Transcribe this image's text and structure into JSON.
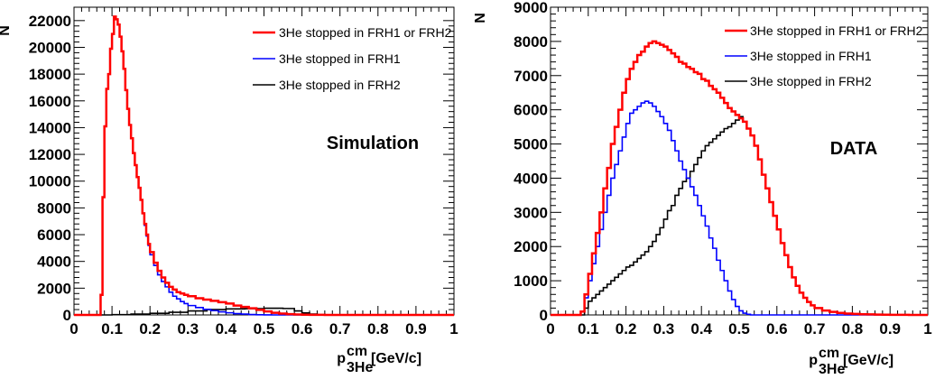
{
  "chart_data": [
    {
      "type": "line",
      "ylabel": "N",
      "xlabel_main": "p",
      "xlabel_sup": "cm",
      "xlabel_sub": "3He",
      "xlabel_unit": "[GeV/c]",
      "xlim": [
        0,
        1
      ],
      "ylim": [
        0,
        23000
      ],
      "xticks": [
        "0",
        "0.1",
        "0.2",
        "0.3",
        "0.4",
        "0.5",
        "0.6",
        "0.7",
        "0.8",
        "0.9",
        "1"
      ],
      "yticks": [
        "0",
        "2000",
        "4000",
        "6000",
        "8000",
        "10000",
        "12000",
        "14000",
        "16000",
        "18000",
        "20000",
        "22000"
      ],
      "annotation": "Simulation",
      "legend_position": "top-right",
      "grid": false,
      "series": [
        {
          "name": "3He stopped in FRH1 or FRH2",
          "color": "#ff0000",
          "x": [
            0.0,
            0.065,
            0.07,
            0.075,
            0.08,
            0.085,
            0.09,
            0.095,
            0.1,
            0.105,
            0.11,
            0.115,
            0.12,
            0.125,
            0.13,
            0.135,
            0.14,
            0.145,
            0.15,
            0.155,
            0.16,
            0.165,
            0.17,
            0.175,
            0.18,
            0.185,
            0.19,
            0.195,
            0.2,
            0.21,
            0.22,
            0.23,
            0.24,
            0.25,
            0.26,
            0.27,
            0.28,
            0.29,
            0.3,
            0.32,
            0.34,
            0.36,
            0.38,
            0.4,
            0.42,
            0.44,
            0.46,
            0.48,
            0.5,
            0.52,
            0.54,
            0.56,
            0.58,
            0.6,
            0.62,
            0.64,
            0.66,
            0.7,
            0.8,
            0.9,
            1.0
          ],
          "y": [
            0,
            0,
            1500,
            8800,
            14100,
            16900,
            18000,
            19900,
            21000,
            22300,
            22100,
            21700,
            20800,
            19700,
            18400,
            16800,
            15400,
            14200,
            13200,
            12100,
            11200,
            10300,
            9500,
            8600,
            7600,
            6800,
            6000,
            5300,
            4700,
            3900,
            3300,
            2800,
            2400,
            2100,
            1900,
            1700,
            1600,
            1500,
            1400,
            1250,
            1150,
            1050,
            950,
            850,
            700,
            600,
            500,
            380,
            260,
            160,
            100,
            60,
            30,
            20,
            10,
            5,
            0,
            0,
            0,
            0,
            0
          ]
        },
        {
          "name": "3He stopped in FRH1",
          "color": "#0000ff",
          "x": [
            0.0,
            0.065,
            0.07,
            0.075,
            0.08,
            0.085,
            0.09,
            0.095,
            0.1,
            0.105,
            0.11,
            0.115,
            0.12,
            0.125,
            0.13,
            0.135,
            0.14,
            0.145,
            0.15,
            0.155,
            0.16,
            0.165,
            0.17,
            0.175,
            0.18,
            0.185,
            0.19,
            0.195,
            0.2,
            0.21,
            0.22,
            0.23,
            0.24,
            0.25,
            0.26,
            0.27,
            0.28,
            0.29,
            0.3,
            0.32,
            0.34,
            0.36,
            0.38,
            0.4,
            0.42,
            0.44,
            0.46,
            0.48,
            0.5,
            0.52,
            0.54,
            0.56,
            0.6,
            0.7,
            0.8,
            0.9,
            1.0
          ],
          "y": [
            0,
            0,
            1500,
            8800,
            14100,
            16900,
            18000,
            19900,
            21000,
            22300,
            22100,
            21700,
            20800,
            19700,
            18400,
            16800,
            15400,
            14200,
            13200,
            12100,
            11200,
            10300,
            9500,
            8600,
            7600,
            6700,
            5900,
            5200,
            4500,
            3700,
            3000,
            2500,
            2100,
            1700,
            1400,
            1200,
            1000,
            850,
            700,
            550,
            420,
            320,
            230,
            160,
            100,
            60,
            30,
            15,
            5,
            0,
            0,
            0,
            0,
            0,
            0,
            0,
            0
          ]
        },
        {
          "name": "3He stopped in FRH2",
          "color": "#000000",
          "x": [
            0.0,
            0.06,
            0.1,
            0.15,
            0.2,
            0.25,
            0.3,
            0.35,
            0.4,
            0.45,
            0.5,
            0.55,
            0.58,
            0.6,
            0.62,
            0.64,
            0.66,
            0.7,
            0.8,
            1.0
          ],
          "y": [
            0,
            0,
            20,
            60,
            120,
            200,
            300,
            400,
            450,
            470,
            500,
            480,
            300,
            150,
            60,
            20,
            0,
            0,
            0,
            0
          ]
        }
      ]
    },
    {
      "type": "line",
      "ylabel": "N",
      "xlabel_main": "p",
      "xlabel_sup": "cm",
      "xlabel_sub": "3He",
      "xlabel_unit": "[GeV/c]",
      "xlim": [
        0,
        1
      ],
      "ylim": [
        0,
        9000
      ],
      "xticks": [
        "0",
        "0.1",
        "0.2",
        "0.3",
        "0.4",
        "0.5",
        "0.6",
        "0.7",
        "0.8",
        "0.9",
        "1"
      ],
      "yticks": [
        "0",
        "1000",
        "2000",
        "3000",
        "4000",
        "5000",
        "6000",
        "7000",
        "8000",
        "9000"
      ],
      "annotation": "DATA",
      "legend_position": "top-right",
      "grid": false,
      "series": [
        {
          "name": "3He stopped in FRH1 or FRH2",
          "color": "#ff0000",
          "x": [
            0.0,
            0.07,
            0.08,
            0.09,
            0.1,
            0.11,
            0.12,
            0.13,
            0.14,
            0.15,
            0.16,
            0.17,
            0.18,
            0.19,
            0.2,
            0.21,
            0.22,
            0.23,
            0.24,
            0.25,
            0.26,
            0.27,
            0.28,
            0.29,
            0.3,
            0.31,
            0.32,
            0.33,
            0.34,
            0.35,
            0.36,
            0.37,
            0.38,
            0.39,
            0.4,
            0.41,
            0.42,
            0.43,
            0.44,
            0.45,
            0.46,
            0.47,
            0.48,
            0.49,
            0.5,
            0.51,
            0.52,
            0.53,
            0.54,
            0.55,
            0.56,
            0.57,
            0.58,
            0.59,
            0.6,
            0.61,
            0.62,
            0.63,
            0.64,
            0.65,
            0.66,
            0.67,
            0.68,
            0.69,
            0.7,
            0.72,
            0.74,
            0.76,
            0.78,
            0.8,
            0.82,
            0.84,
            0.86,
            0.88,
            0.9,
            0.95,
            1.0
          ],
          "y": [
            0,
            0,
            100,
            600,
            1200,
            1800,
            2400,
            3000,
            3700,
            4300,
            5000,
            5500,
            6000,
            6500,
            6900,
            7200,
            7400,
            7600,
            7700,
            7850,
            7950,
            8000,
            7950,
            7900,
            7850,
            7750,
            7650,
            7550,
            7400,
            7350,
            7250,
            7200,
            7100,
            7050,
            6900,
            6850,
            6700,
            6600,
            6500,
            6350,
            6200,
            6050,
            5950,
            5850,
            5750,
            5650,
            5450,
            5250,
            4950,
            4550,
            4100,
            3700,
            3300,
            2900,
            2500,
            2100,
            1750,
            1400,
            1100,
            850,
            650,
            500,
            380,
            280,
            200,
            130,
            90,
            60,
            40,
            30,
            20,
            15,
            10,
            5,
            3,
            0,
            0
          ]
        },
        {
          "name": "3He stopped in FRH1",
          "color": "#0000ff",
          "x": [
            0.0,
            0.07,
            0.08,
            0.09,
            0.1,
            0.11,
            0.12,
            0.13,
            0.14,
            0.15,
            0.16,
            0.17,
            0.18,
            0.19,
            0.2,
            0.21,
            0.22,
            0.23,
            0.24,
            0.25,
            0.26,
            0.27,
            0.28,
            0.29,
            0.3,
            0.31,
            0.32,
            0.33,
            0.34,
            0.35,
            0.36,
            0.37,
            0.38,
            0.39,
            0.4,
            0.41,
            0.42,
            0.43,
            0.44,
            0.45,
            0.46,
            0.47,
            0.48,
            0.49,
            0.5,
            0.51,
            0.52,
            0.53,
            0.55,
            0.6,
            0.8,
            1.0
          ],
          "y": [
            0,
            0,
            100,
            500,
            1000,
            1500,
            2000,
            2500,
            3000,
            3500,
            4000,
            4400,
            4800,
            5200,
            5600,
            5900,
            6000,
            6100,
            6200,
            6250,
            6200,
            6100,
            5950,
            5800,
            5600,
            5400,
            5100,
            4800,
            4500,
            4250,
            4000,
            3750,
            3500,
            3200,
            2900,
            2600,
            2250,
            1950,
            1600,
            1300,
            1000,
            700,
            450,
            250,
            120,
            50,
            20,
            0,
            0,
            0,
            0,
            0
          ]
        },
        {
          "name": "3He stopped in FRH2",
          "color": "#000000",
          "x": [
            0.0,
            0.08,
            0.09,
            0.1,
            0.11,
            0.12,
            0.13,
            0.14,
            0.15,
            0.16,
            0.17,
            0.18,
            0.19,
            0.2,
            0.21,
            0.22,
            0.23,
            0.24,
            0.25,
            0.26,
            0.27,
            0.28,
            0.29,
            0.3,
            0.31,
            0.32,
            0.33,
            0.34,
            0.35,
            0.36,
            0.37,
            0.38,
            0.39,
            0.4,
            0.41,
            0.42,
            0.43,
            0.44,
            0.45,
            0.46,
            0.47,
            0.48,
            0.49,
            0.5,
            0.51,
            0.52,
            0.53,
            0.54,
            0.55,
            0.56,
            0.57,
            0.58,
            0.59,
            0.6,
            0.61,
            0.62,
            0.63,
            0.64,
            0.65,
            0.66,
            0.67,
            0.68,
            0.69,
            0.7,
            0.72,
            0.74,
            0.76,
            0.78,
            0.8,
            0.82,
            0.84,
            0.86,
            0.88,
            0.9,
            0.95,
            1.0
          ],
          "y": [
            0,
            0,
            200,
            400,
            500,
            600,
            700,
            800,
            900,
            1000,
            1100,
            1200,
            1300,
            1400,
            1450,
            1550,
            1650,
            1750,
            1850,
            2000,
            2150,
            2350,
            2550,
            2800,
            3050,
            3200,
            3500,
            3700,
            3900,
            4000,
            4200,
            4400,
            4600,
            4800,
            4950,
            5050,
            5150,
            5250,
            5350,
            5450,
            5500,
            5600,
            5700,
            5800,
            5650,
            5450,
            5250,
            4950,
            4550,
            4100,
            3700,
            3300,
            2900,
            2500,
            2100,
            1750,
            1400,
            1100,
            850,
            650,
            500,
            380,
            280,
            200,
            130,
            90,
            60,
            40,
            30,
            20,
            15,
            10,
            5,
            3,
            0,
            0
          ]
        }
      ]
    }
  ]
}
